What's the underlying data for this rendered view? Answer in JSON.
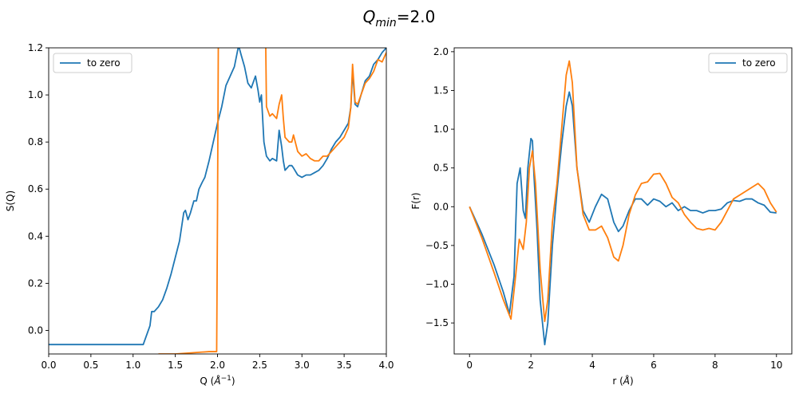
{
  "figure": {
    "suptitle_main": "Q",
    "suptitle_sub": "min",
    "suptitle_rest": "=2.0"
  },
  "chart_data": [
    {
      "type": "line",
      "xlabel_main": "Q (",
      "xlabel_unit": "Å",
      "xlabel_exp": "−1",
      "xlabel_close": ")",
      "ylabel": "S(Q)",
      "xlim": [
        0,
        4.0
      ],
      "ylim": [
        -0.1,
        1.2
      ],
      "xticks": [
        0.0,
        0.5,
        1.0,
        1.5,
        2.0,
        2.5,
        3.0,
        3.5,
        4.0
      ],
      "xtick_labels": [
        "0.0",
        "0.5",
        "1.0",
        "1.5",
        "2.0",
        "2.5",
        "3.0",
        "3.5",
        "4.0"
      ],
      "yticks": [
        0.0,
        0.2,
        0.4,
        0.6,
        0.8,
        1.0,
        1.2
      ],
      "ytick_labels": [
        "0.0",
        "0.2",
        "0.4",
        "0.6",
        "0.8",
        "1.0",
        "1.2"
      ],
      "grid": false,
      "legend": {
        "placement": "upper-left",
        "entries": [
          "to zero"
        ]
      },
      "series": [
        {
          "name": "to zero",
          "color": "#1f77b4",
          "x": [
            0,
            1.12,
            1.2,
            1.22,
            1.25,
            1.3,
            1.35,
            1.4,
            1.45,
            1.5,
            1.55,
            1.6,
            1.62,
            1.65,
            1.68,
            1.72,
            1.75,
            1.78,
            1.82,
            1.85,
            1.9,
            1.95,
            2.0,
            2.05,
            2.1,
            2.15,
            2.2,
            2.25,
            2.28,
            2.32,
            2.36,
            2.4,
            2.45,
            2.48,
            2.5,
            2.52,
            2.55,
            2.58,
            2.62,
            2.65,
            2.7,
            2.73,
            2.76,
            2.78,
            2.8,
            2.85,
            2.88,
            2.9,
            2.95,
            3.0,
            3.05,
            3.1,
            3.15,
            3.2,
            3.25,
            3.3,
            3.35,
            3.4,
            3.45,
            3.5,
            3.55,
            3.58,
            3.6,
            3.63,
            3.66,
            3.7,
            3.75,
            3.8,
            3.85,
            3.9,
            3.95,
            4.0
          ],
          "y": [
            -0.06,
            -0.06,
            0.02,
            0.08,
            0.08,
            0.1,
            0.13,
            0.18,
            0.24,
            0.31,
            0.38,
            0.5,
            0.51,
            0.47,
            0.5,
            0.55,
            0.55,
            0.6,
            0.63,
            0.65,
            0.72,
            0.8,
            0.88,
            0.95,
            1.04,
            1.08,
            1.12,
            1.21,
            1.17,
            1.12,
            1.05,
            1.03,
            1.08,
            1.02,
            0.97,
            1.0,
            0.8,
            0.74,
            0.72,
            0.73,
            0.72,
            0.85,
            0.78,
            0.72,
            0.68,
            0.7,
            0.7,
            0.69,
            0.66,
            0.65,
            0.66,
            0.66,
            0.67,
            0.68,
            0.7,
            0.73,
            0.77,
            0.8,
            0.82,
            0.85,
            0.88,
            0.95,
            1.1,
            0.96,
            0.95,
            1.0,
            1.06,
            1.08,
            1.13,
            1.15,
            1.18,
            1.2
          ]
        },
        {
          "name": "",
          "color": "#ff7f0e",
          "x": [
            1.3,
            1.5,
            1.9,
            1.99,
            2.0,
            2.01,
            2.57,
            2.58,
            2.6,
            2.62,
            2.65,
            2.7,
            2.73,
            2.76,
            2.78,
            2.8,
            2.85,
            2.88,
            2.9,
            2.95,
            3.0,
            3.05,
            3.1,
            3.15,
            3.2,
            3.25,
            3.3,
            3.35,
            3.4,
            3.45,
            3.5,
            3.55,
            3.58,
            3.6,
            3.63,
            3.66,
            3.7,
            3.75,
            3.8,
            3.85,
            3.9,
            3.95,
            4.0
          ],
          "y": [
            -0.1,
            -0.1,
            -0.09,
            -0.09,
            0.5,
            1.25,
            1.25,
            0.95,
            0.93,
            0.91,
            0.92,
            0.9,
            0.96,
            1.0,
            0.9,
            0.82,
            0.8,
            0.8,
            0.83,
            0.76,
            0.74,
            0.75,
            0.73,
            0.72,
            0.72,
            0.74,
            0.74,
            0.76,
            0.78,
            0.8,
            0.82,
            0.86,
            0.95,
            1.13,
            0.97,
            0.96,
            1.0,
            1.05,
            1.07,
            1.1,
            1.15,
            1.14,
            1.18
          ]
        }
      ]
    },
    {
      "type": "line",
      "xlabel_main": "r (",
      "xlabel_unit": "Å",
      "xlabel_exp": "",
      "xlabel_close": ")",
      "ylabel": "F(r)",
      "xlim": [
        -0.5,
        10.5
      ],
      "ylim": [
        -1.9,
        2.05
      ],
      "xticks": [
        0,
        2,
        4,
        6,
        8,
        10
      ],
      "xtick_labels": [
        "0",
        "2",
        "4",
        "6",
        "8",
        "10"
      ],
      "yticks": [
        -1.5,
        -1.0,
        -0.5,
        0.0,
        0.5,
        1.0,
        1.5,
        2.0
      ],
      "ytick_labels": [
        "−1.5",
        "−1.0",
        "−0.5",
        "0.0",
        "0.5",
        "1.0",
        "1.5",
        "2.0"
      ],
      "grid": false,
      "legend": {
        "placement": "upper-right",
        "entries": [
          "to zero"
        ]
      },
      "series": [
        {
          "name": "to zero",
          "color": "#1f77b4",
          "x": [
            0,
            0.4,
            0.8,
            1.1,
            1.3,
            1.45,
            1.55,
            1.65,
            1.75,
            1.82,
            1.9,
            2.0,
            2.05,
            2.1,
            2.2,
            2.3,
            2.45,
            2.55,
            2.7,
            2.85,
            3.0,
            3.15,
            3.25,
            3.35,
            3.5,
            3.7,
            3.9,
            4.1,
            4.3,
            4.5,
            4.7,
            4.85,
            5.0,
            5.2,
            5.4,
            5.6,
            5.8,
            6.0,
            6.2,
            6.4,
            6.6,
            6.8,
            7.0,
            7.2,
            7.4,
            7.6,
            7.8,
            8.0,
            8.2,
            8.4,
            8.6,
            8.8,
            9.0,
            9.2,
            9.4,
            9.6,
            9.8,
            10.0
          ],
          "y": [
            0.0,
            -0.35,
            -0.75,
            -1.1,
            -1.38,
            -0.9,
            0.3,
            0.5,
            -0.05,
            -0.15,
            0.5,
            0.88,
            0.85,
            0.4,
            -0.3,
            -1.2,
            -1.78,
            -1.5,
            -0.5,
            0.2,
            0.8,
            1.3,
            1.48,
            1.3,
            0.5,
            -0.05,
            -0.2,
            0.0,
            0.16,
            0.1,
            -0.2,
            -0.32,
            -0.25,
            -0.05,
            0.1,
            0.1,
            0.02,
            0.1,
            0.07,
            0.0,
            0.05,
            -0.05,
            0.0,
            -0.05,
            -0.05,
            -0.08,
            -0.05,
            -0.05,
            -0.03,
            0.05,
            0.08,
            0.07,
            0.1,
            0.1,
            0.05,
            0.02,
            -0.07,
            -0.08
          ]
        },
        {
          "name": "",
          "color": "#ff7f0e",
          "x": [
            0,
            0.4,
            0.8,
            1.1,
            1.35,
            1.5,
            1.62,
            1.75,
            1.85,
            1.95,
            2.05,
            2.15,
            2.3,
            2.45,
            2.55,
            2.7,
            2.85,
            3.0,
            3.15,
            3.25,
            3.35,
            3.5,
            3.7,
            3.9,
            4.1,
            4.3,
            4.5,
            4.7,
            4.85,
            5.0,
            5.2,
            5.4,
            5.6,
            5.8,
            6.0,
            6.2,
            6.4,
            6.6,
            6.8,
            7.0,
            7.2,
            7.4,
            7.6,
            7.8,
            8.0,
            8.2,
            8.4,
            8.6,
            8.8,
            9.0,
            9.2,
            9.4,
            9.6,
            9.8,
            10.0
          ],
          "y": [
            0.0,
            -0.4,
            -0.85,
            -1.2,
            -1.45,
            -0.9,
            -0.42,
            -0.55,
            -0.2,
            0.5,
            0.72,
            0.3,
            -0.8,
            -1.48,
            -1.2,
            -0.2,
            0.3,
            1.0,
            1.7,
            1.88,
            1.6,
            0.5,
            -0.1,
            -0.3,
            -0.3,
            -0.25,
            -0.4,
            -0.65,
            -0.7,
            -0.5,
            -0.1,
            0.15,
            0.3,
            0.32,
            0.42,
            0.43,
            0.3,
            0.12,
            0.05,
            -0.1,
            -0.2,
            -0.28,
            -0.3,
            -0.28,
            -0.3,
            -0.2,
            -0.05,
            0.1,
            0.15,
            0.2,
            0.25,
            0.3,
            0.22,
            0.05,
            -0.07
          ]
        }
      ]
    }
  ]
}
